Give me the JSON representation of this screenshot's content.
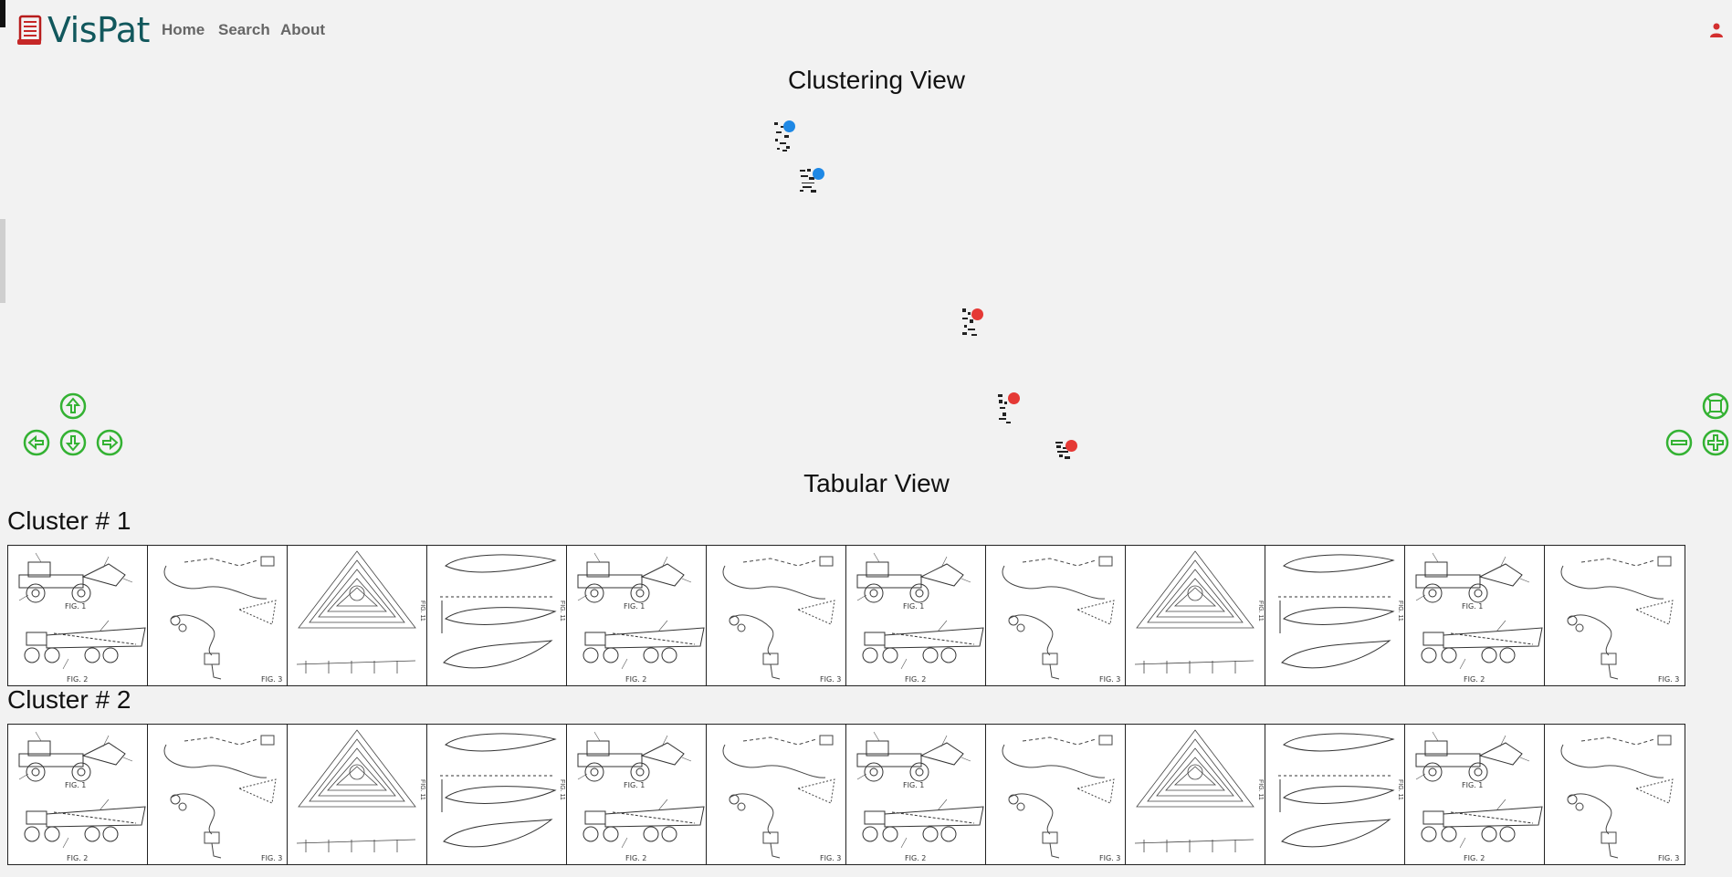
{
  "nav": {
    "logo_text": "VisPat",
    "links": [
      {
        "label": "Home",
        "icon": null
      },
      {
        "label": "Search"
      },
      {
        "label": "About"
      }
    ],
    "user_icon": "user-icon"
  },
  "clustering": {
    "title": "Clustering View",
    "points": [
      {
        "cluster": 1,
        "color": "#1e88e5"
      },
      {
        "cluster": 1,
        "color": "#1e88e5"
      },
      {
        "cluster": 2,
        "color": "#e53935"
      },
      {
        "cluster": 2,
        "color": "#e53935"
      },
      {
        "cluster": 2,
        "color": "#e53935"
      }
    ],
    "controls": {
      "pan": [
        "arrow-up-icon",
        "arrow-left-icon",
        "arrow-down-icon",
        "arrow-right-icon"
      ],
      "zoom": [
        "fit-icon",
        "zoom-out-icon",
        "zoom-in-icon"
      ],
      "accent": "#34b233"
    }
  },
  "tabular": {
    "title": "Tabular View",
    "clusters": [
      {
        "label": "Cluster # 1",
        "images": [
          "excavator",
          "path",
          "cam",
          "airfoil",
          "excavator",
          "path",
          "excavator",
          "path",
          "cam",
          "airfoil",
          "excavator",
          "path"
        ]
      },
      {
        "label": "Cluster # 2",
        "images": [
          "excavator",
          "path",
          "cam",
          "airfoil",
          "excavator",
          "path",
          "excavator",
          "path",
          "cam",
          "airfoil",
          "excavator",
          "path"
        ]
      }
    ],
    "fig_labels": {
      "excavator_top": "FIG. 1",
      "excavator_bottom": "FIG. 2",
      "path": "FIG. 3",
      "side": "FIG. 11"
    }
  }
}
